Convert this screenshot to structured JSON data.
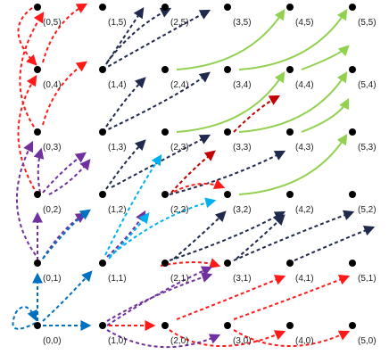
{
  "grid": {
    "cols": 6,
    "rows": 6
  },
  "colors": {
    "node": "#000000",
    "red": "#ff1a1a",
    "darkred": "#c00000",
    "navy": "#1f2a4d",
    "green": "#92d050",
    "purple": "#7030a0",
    "cyan": "#00b0f0",
    "blue": "#0070c0"
  },
  "labels": {
    "n0_0": "(0,0)",
    "n1_0": "(1,0)",
    "n2_0": "(2,0)",
    "n3_0": "(3,0)",
    "n4_0": "(4,0)",
    "n5_0": "(5,0)",
    "n0_1": "(0,1)",
    "n1_1": "(1,1)",
    "n2_1": "(2,1)",
    "n3_1": "(3,1)",
    "n4_1": "(4,1)",
    "n5_1": "(5,1)",
    "n0_2": "(0,2)",
    "n1_2": "(1,2)",
    "n2_2": "(2,2)",
    "n3_2": "(3,2)",
    "n4_2": "(4,2)",
    "n5_2": "(5,2)",
    "n0_3": "(0,3)",
    "n1_3": "(1,3)",
    "n2_3": "(2,3)",
    "n3_3": "(3,3)",
    "n4_3": "(4,3)",
    "n5_3": "(5,3)",
    "n0_4": "(0,4)",
    "n1_4": "(1,4)",
    "n2_4": "(2,4)",
    "n3_4": "(3,4)",
    "n4_4": "(4,4)",
    "n5_4": "(5,4)",
    "n0_5": "(0,5)",
    "n1_5": "(1,5)",
    "n2_5": "(2,5)",
    "n3_5": "(3,5)",
    "n4_5": "(4,5)",
    "n5_5": "(5,5)"
  }
}
